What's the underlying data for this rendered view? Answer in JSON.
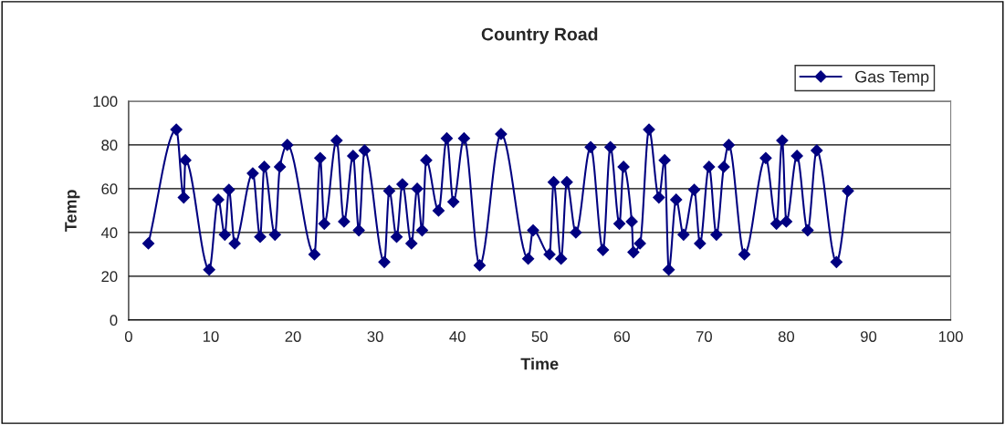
{
  "chart_data": {
    "type": "line",
    "title": "Country Road",
    "xlabel": "Time",
    "ylabel": "Temp",
    "xlim": [
      0,
      100
    ],
    "xticks": [
      0,
      10,
      20,
      30,
      40,
      50,
      60,
      70,
      80,
      90,
      100
    ],
    "ylim": [
      0,
      100
    ],
    "yticks": [
      0,
      20,
      40,
      60,
      80,
      100
    ],
    "grid": "y",
    "legend": "top right",
    "marker": "diamond",
    "line_style": "solid",
    "series": [
      {
        "name": "Gas Temp",
        "color": "#000080",
        "x": [
          2.4,
          5.8,
          6.7,
          6.9,
          9.8,
          10.9,
          11.7,
          12.2,
          12.9,
          15.1,
          16.0,
          16.5,
          17.8,
          18.4,
          19.3,
          22.6,
          23.3,
          23.8,
          25.3,
          26.2,
          27.3,
          28.0,
          28.7,
          31.1,
          31.7,
          32.6,
          33.3,
          34.4,
          35.1,
          35.7,
          36.2,
          37.7,
          38.7,
          39.5,
          40.8,
          42.7,
          45.3,
          48.6,
          49.2,
          51.2,
          51.7,
          52.6,
          53.3,
          54.4,
          56.2,
          57.7,
          58.6,
          59.7,
          60.2,
          61.2,
          61.4,
          62.2,
          63.3,
          64.5,
          65.2,
          65.7,
          66.6,
          67.5,
          68.8,
          69.5,
          70.6,
          71.5,
          72.4,
          73.0,
          74.9,
          77.5,
          78.8,
          79.5,
          80.0,
          81.3,
          82.6,
          83.7,
          86.1,
          87.5
        ],
        "values": [
          35,
          87,
          56,
          73,
          23,
          55,
          39,
          59.5,
          35,
          67,
          38,
          70,
          39,
          70,
          80,
          30,
          74,
          44,
          82,
          45,
          75,
          41,
          77.5,
          26.5,
          59,
          38,
          62,
          35,
          60,
          41,
          73,
          50,
          83,
          54,
          83,
          25,
          85,
          28,
          41,
          30,
          63,
          28,
          63,
          40,
          79,
          32,
          79,
          44,
          70,
          45,
          31,
          35,
          87,
          56,
          73,
          23,
          55,
          39,
          59.5,
          35,
          70,
          39,
          70,
          80,
          30,
          74,
          44,
          82,
          45,
          75,
          41,
          77.5,
          26.5,
          59
        ]
      }
    ]
  }
}
